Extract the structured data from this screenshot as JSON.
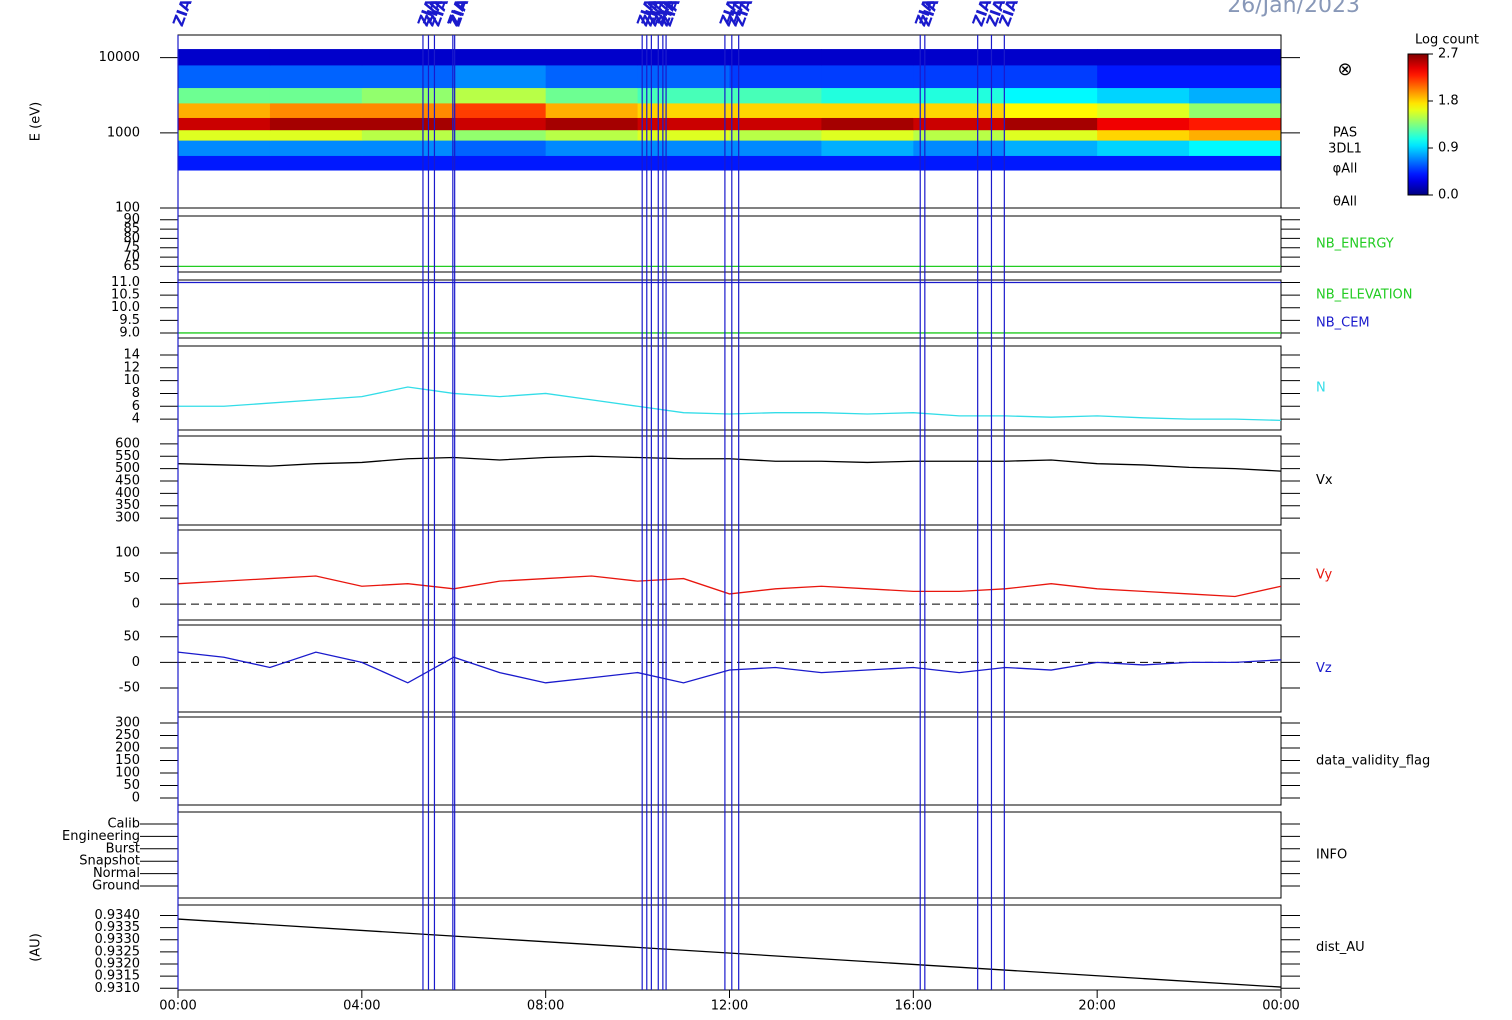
{
  "date": "26/Jan/2023",
  "time_axis": {
    "xlim": [
      0,
      24
    ],
    "xticks": [
      {
        "value": 0,
        "label": "00:00"
      },
      {
        "value": 4,
        "label": "04:00"
      },
      {
        "value": 8,
        "label": "08:00"
      },
      {
        "value": 12,
        "label": "12:00"
      },
      {
        "value": 16,
        "label": "16:00"
      },
      {
        "value": 20,
        "label": "20:00"
      },
      {
        "value": 24,
        "label": "00:00"
      }
    ]
  },
  "markers": {
    "label": "ZIAS",
    "color": "#1a1acc",
    "x": [
      0,
      5.33,
      5.45,
      5.58,
      5.98,
      6.02,
      10.1,
      10.2,
      10.3,
      10.45,
      10.55,
      10.62,
      11.9,
      12.05,
      12.2,
      16.15,
      16.25,
      17.4,
      17.7,
      17.98
    ]
  },
  "chart_data": [
    {
      "type": "heatmap",
      "ylabel": "E (eV)",
      "log": true,
      "ylim": [
        100,
        20000
      ],
      "yticks": [
        100,
        1000,
        10000
      ],
      "side_labels": [
        "PAS",
        "3DL1",
        "φAll",
        "θAll"
      ],
      "symbol": "⊗",
      "xbins": [
        0,
        2,
        4,
        6,
        8,
        10,
        12,
        14,
        16,
        18,
        20,
        22,
        24
      ],
      "ybins": [
        320,
        500,
        800,
        1100,
        1600,
        2500,
        4000,
        8000,
        13000
      ],
      "z": [
        [
          0.4,
          0.4,
          0.4,
          0.4,
          0.4,
          0.4,
          0.4,
          0.4,
          0.4,
          0.4,
          0.4,
          0.4
        ],
        [
          0.7,
          0.7,
          0.7,
          0.6,
          0.7,
          0.7,
          0.7,
          0.8,
          0.7,
          0.8,
          0.9,
          1.0
        ],
        [
          1.6,
          1.6,
          1.5,
          1.4,
          1.5,
          1.6,
          1.5,
          1.6,
          1.5,
          1.6,
          1.8,
          1.9
        ],
        [
          2.5,
          2.6,
          2.6,
          2.5,
          2.6,
          2.5,
          2.5,
          2.6,
          2.5,
          2.6,
          2.4,
          2.3
        ],
        [
          1.9,
          2.0,
          2.0,
          2.2,
          1.9,
          1.8,
          1.8,
          1.8,
          1.8,
          1.7,
          1.6,
          1.4
        ],
        [
          1.3,
          1.3,
          1.4,
          1.5,
          1.3,
          1.2,
          1.2,
          1.1,
          1.1,
          1.0,
          0.9,
          0.8
        ],
        [
          0.6,
          0.6,
          0.6,
          0.7,
          0.6,
          0.6,
          0.5,
          0.5,
          0.5,
          0.5,
          0.4,
          0.4
        ],
        [
          0.2,
          0.2,
          0.2,
          0.2,
          0.2,
          0.2,
          0.2,
          0.2,
          0.2,
          0.2,
          0.2,
          0.2
        ]
      ],
      "colorbar": {
        "title": "Log count",
        "lim": [
          0,
          2.7
        ],
        "ticks": [
          {
            "value": 0,
            "label": "0.0"
          },
          {
            "value": 0.9,
            "label": "0.9"
          },
          {
            "value": 1.8,
            "label": "1.8"
          },
          {
            "value": 2.7,
            "label": "2.7"
          }
        ]
      }
    },
    {
      "type": "line",
      "ylim": [
        62,
        92
      ],
      "yticks": [
        65,
        70,
        75,
        80,
        85,
        90
      ],
      "series": [
        {
          "name": "NB_ENERGY",
          "color": "#22cc22",
          "x": [
            0,
            24
          ],
          "values": [
            65,
            65
          ]
        }
      ]
    },
    {
      "type": "line",
      "ylim": [
        8.8,
        11.1
      ],
      "yticks": [
        {
          "value": 9,
          "label": "9.0"
        },
        {
          "value": 9.5,
          "label": "9.5"
        },
        {
          "value": 10,
          "label": "10.0"
        },
        {
          "value": 10.5,
          "label": "10.5"
        },
        {
          "value": 11,
          "label": "11.0"
        }
      ],
      "series": [
        {
          "name": "NB_ELEVATION",
          "color": "#22cc22",
          "x": [
            0,
            24
          ],
          "values": [
            9,
            9
          ]
        },
        {
          "name": "NB_CEM",
          "color": "#1a1acc",
          "x": [
            0,
            24
          ],
          "values": [
            11,
            11
          ]
        }
      ]
    },
    {
      "type": "line",
      "ylim": [
        2.3,
        15.4
      ],
      "yticks": [
        4,
        6,
        8,
        10,
        12,
        14
      ],
      "series": [
        {
          "name": "N",
          "color": "#33dde8",
          "x": [
            0,
            1,
            2,
            3,
            4,
            5,
            6,
            7,
            8,
            9,
            10,
            11,
            12,
            13,
            14,
            15,
            16,
            17,
            18,
            19,
            20,
            21,
            22,
            23,
            24
          ],
          "values": [
            6,
            6,
            6.5,
            7,
            7.5,
            9,
            8,
            7.5,
            8,
            7,
            6,
            5,
            4.8,
            5,
            5,
            4.8,
            5,
            4.5,
            4.5,
            4.3,
            4.5,
            4.2,
            4,
            4,
            3.8
          ]
        }
      ]
    },
    {
      "type": "line",
      "ylim": [
        272,
        632
      ],
      "yticks": [
        300,
        350,
        400,
        450,
        500,
        550,
        600
      ],
      "series": [
        {
          "name": "Vx",
          "color": "#000000",
          "x": [
            0,
            1,
            2,
            3,
            4,
            5,
            6,
            7,
            8,
            9,
            10,
            11,
            12,
            13,
            14,
            15,
            16,
            17,
            18,
            19,
            20,
            21,
            22,
            23,
            24
          ],
          "values": [
            520,
            515,
            510,
            520,
            525,
            540,
            545,
            535,
            545,
            550,
            545,
            540,
            540,
            530,
            530,
            525,
            530,
            530,
            530,
            535,
            520,
            515,
            505,
            500,
            490
          ]
        }
      ]
    },
    {
      "type": "line",
      "ylim": [
        -31,
        145
      ],
      "yticks": [
        0,
        50,
        100
      ],
      "zero_line": true,
      "series": [
        {
          "name": "Vy",
          "color": "#e8160e",
          "x": [
            0,
            1,
            2,
            3,
            4,
            5,
            6,
            7,
            8,
            9,
            10,
            11,
            12,
            13,
            14,
            15,
            16,
            17,
            18,
            19,
            20,
            21,
            22,
            23,
            24
          ],
          "values": [
            40,
            45,
            50,
            55,
            35,
            40,
            30,
            45,
            50,
            55,
            45,
            50,
            20,
            30,
            35,
            30,
            25,
            25,
            30,
            40,
            30,
            25,
            20,
            15,
            35
          ]
        }
      ]
    },
    {
      "type": "line",
      "ylim": [
        -97,
        73
      ],
      "yticks": [
        -50,
        0,
        50
      ],
      "zero_line": true,
      "series": [
        {
          "name": "Vz",
          "color": "#1a1acc",
          "x": [
            0,
            1,
            2,
            3,
            4,
            5,
            6,
            7,
            8,
            9,
            10,
            11,
            12,
            13,
            14,
            15,
            16,
            17,
            18,
            19,
            20,
            21,
            22,
            23,
            24
          ],
          "values": [
            20,
            10,
            -10,
            20,
            0,
            -40,
            10,
            -20,
            -40,
            -30,
            -20,
            -40,
            -15,
            -10,
            -20,
            -15,
            -10,
            -20,
            -10,
            -15,
            0,
            -5,
            0,
            0,
            5
          ]
        }
      ]
    },
    {
      "type": "line",
      "ylim": [
        -28,
        324
      ],
      "yticks": [
        0,
        50,
        100,
        150,
        200,
        250,
        300
      ],
      "label": "data_validity_flag",
      "series": []
    },
    {
      "type": "category",
      "categories": [
        "Calib",
        "Engineering",
        "Burst",
        "Snapshot",
        "Normal",
        "Ground"
      ],
      "label": "INFO"
    },
    {
      "type": "line",
      "ylabel": "(AU)",
      "ylim": [
        0.93093,
        0.93443
      ],
      "yticks": [
        {
          "value": 0.931,
          "label": "0.9310"
        },
        {
          "value": 0.9315,
          "label": "0.9315"
        },
        {
          "value": 0.932,
          "label": "0.9320"
        },
        {
          "value": 0.9325,
          "label": "0.9325"
        },
        {
          "value": 0.933,
          "label": "0.9330"
        },
        {
          "value": 0.9335,
          "label": "0.9335"
        },
        {
          "value": 0.934,
          "label": "0.9340"
        }
      ],
      "series": [
        {
          "name": "dist_AU",
          "color": "#000000",
          "x": [
            0,
            24
          ],
          "values": [
            0.93385,
            0.93105
          ]
        }
      ]
    }
  ]
}
